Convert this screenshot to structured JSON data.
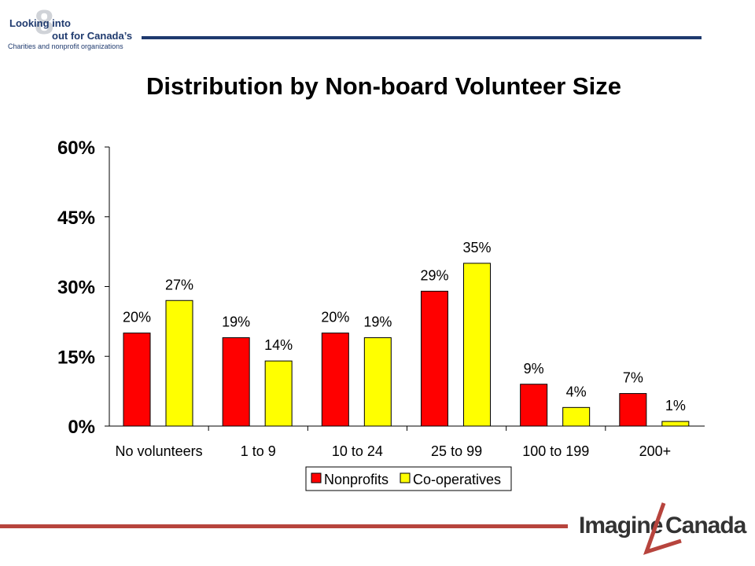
{
  "header_logo": {
    "line1": "Looking into",
    "numeral": "8",
    "line2": "out for Canada’s",
    "line3": "Charities and nonprofit organizations"
  },
  "footer_logo": {
    "word1": "Imagine",
    "word2": "Canada"
  },
  "colors": {
    "rule_top": "#1f3a6e",
    "rule_bottom": "#b7443d",
    "nonprofits": "#ff0000",
    "cooperatives": "#ffff00"
  },
  "chart_data": {
    "type": "bar",
    "title": "Distribution by Non-board Volunteer Size",
    "categories": [
      "No volunteers",
      "1 to 9",
      "10 to 24",
      "25 to 99",
      "100 to 199",
      "200+"
    ],
    "series": [
      {
        "name": "Nonprofits",
        "values": [
          20,
          19,
          20,
          29,
          9,
          7
        ],
        "labels": [
          "20%",
          "19%",
          "20%",
          "29%",
          "9%",
          "7%"
        ],
        "color": "#ff0000"
      },
      {
        "name": "Co-operatives",
        "values": [
          27,
          14,
          19,
          35,
          4,
          1
        ],
        "labels": [
          "27%",
          "14%",
          "19%",
          "35%",
          "4%",
          "1%"
        ],
        "color": "#ffff00"
      }
    ],
    "yticks": [
      "0%",
      "15%",
      "30%",
      "45%",
      "60%"
    ],
    "ylim": [
      0,
      60
    ],
    "grid": false,
    "legend": "bottom-center"
  }
}
